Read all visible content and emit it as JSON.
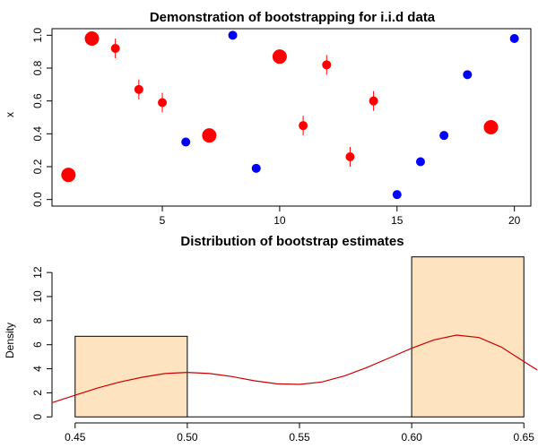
{
  "chart_data": [
    {
      "type": "scatter",
      "title": "Demonstration of bootstrapping for i.i.d data",
      "xlabel": "",
      "ylabel": "x",
      "xlim": [
        0.3,
        20.7
      ],
      "ylim": [
        -0.04,
        1.04
      ],
      "x_ticks": [
        5,
        10,
        15,
        20
      ],
      "y_ticks": [
        0.0,
        0.2,
        0.4,
        0.6,
        0.8,
        1.0
      ],
      "x_tick_labels": [
        "5",
        "10",
        "15",
        "20"
      ],
      "y_tick_labels": [
        "0.0",
        "0.2",
        "0.4",
        "0.6",
        "0.8",
        "1.0"
      ],
      "colors": {
        "sampled": "#ff0000",
        "not_sampled": "#0000ff"
      },
      "points": [
        {
          "x": 1,
          "y": 0.15,
          "color": "red",
          "size": 1.6,
          "spike": 0.0
        },
        {
          "x": 2,
          "y": 0.98,
          "color": "red",
          "size": 1.6,
          "spike": 0.0
        },
        {
          "x": 3,
          "y": 0.92,
          "color": "red",
          "size": 1.0,
          "spike": 0.06
        },
        {
          "x": 4,
          "y": 0.67,
          "color": "red",
          "size": 1.0,
          "spike": 0.06
        },
        {
          "x": 5,
          "y": 0.59,
          "color": "red",
          "size": 1.0,
          "spike": 0.06
        },
        {
          "x": 6,
          "y": 0.35,
          "color": "blue",
          "size": 1.0,
          "spike": 0.0
        },
        {
          "x": 7,
          "y": 0.39,
          "color": "red",
          "size": 1.6,
          "spike": 0.0
        },
        {
          "x": 8,
          "y": 1.0,
          "color": "blue",
          "size": 1.0,
          "spike": 0.0
        },
        {
          "x": 9,
          "y": 0.19,
          "color": "blue",
          "size": 1.0,
          "spike": 0.0
        },
        {
          "x": 10,
          "y": 0.87,
          "color": "red",
          "size": 1.6,
          "spike": 0.0
        },
        {
          "x": 11,
          "y": 0.45,
          "color": "red",
          "size": 1.0,
          "spike": 0.06
        },
        {
          "x": 12,
          "y": 0.82,
          "color": "red",
          "size": 1.0,
          "spike": 0.06
        },
        {
          "x": 13,
          "y": 0.26,
          "color": "red",
          "size": 1.0,
          "spike": 0.06
        },
        {
          "x": 14,
          "y": 0.6,
          "color": "red",
          "size": 1.0,
          "spike": 0.06
        },
        {
          "x": 15,
          "y": 0.03,
          "color": "blue",
          "size": 1.0,
          "spike": 0.0
        },
        {
          "x": 16,
          "y": 0.23,
          "color": "blue",
          "size": 1.0,
          "spike": 0.0
        },
        {
          "x": 17,
          "y": 0.39,
          "color": "blue",
          "size": 1.0,
          "spike": 0.0
        },
        {
          "x": 18,
          "y": 0.76,
          "color": "blue",
          "size": 1.0,
          "spike": 0.0
        },
        {
          "x": 19,
          "y": 0.44,
          "color": "red",
          "size": 1.6,
          "spike": 0.0
        },
        {
          "x": 20,
          "y": 0.98,
          "color": "blue",
          "size": 1.0,
          "spike": 0.0
        }
      ]
    },
    {
      "type": "histogram",
      "title": "Distribution of bootstrap estimates",
      "xlabel": "",
      "ylabel": "Density",
      "xlim": [
        0.4397,
        0.6563
      ],
      "ylim": [
        -0.5,
        13.5
      ],
      "x_ticks": [
        0.45,
        0.5,
        0.55,
        0.6,
        0.65
      ],
      "y_ticks": [
        0,
        2,
        4,
        6,
        8,
        10,
        12
      ],
      "x_tick_labels": [
        "0.45",
        "0.50",
        "0.55",
        "0.60",
        "0.65"
      ],
      "y_tick_labels": [
        "0",
        "2",
        "4",
        "6",
        "8",
        "10",
        "12"
      ],
      "bar_fill": "#fde3c0",
      "density_color": "#cc0000",
      "bins": [
        {
          "x0": 0.45,
          "x1": 0.5,
          "density": 6.7
        },
        {
          "x0": 0.5,
          "x1": 0.55,
          "density": 0
        },
        {
          "x0": 0.55,
          "x1": 0.6,
          "density": 0
        },
        {
          "x0": 0.6,
          "x1": 0.65,
          "density": 13.3
        }
      ],
      "density_curve": [
        [
          0.44,
          1.2
        ],
        [
          0.45,
          1.8
        ],
        [
          0.46,
          2.4
        ],
        [
          0.47,
          2.9
        ],
        [
          0.48,
          3.3
        ],
        [
          0.49,
          3.6
        ],
        [
          0.5,
          3.7
        ],
        [
          0.51,
          3.6
        ],
        [
          0.52,
          3.35
        ],
        [
          0.53,
          3.0
        ],
        [
          0.54,
          2.75
        ],
        [
          0.55,
          2.7
        ],
        [
          0.56,
          2.9
        ],
        [
          0.57,
          3.4
        ],
        [
          0.58,
          4.1
        ],
        [
          0.59,
          4.9
        ],
        [
          0.6,
          5.7
        ],
        [
          0.61,
          6.4
        ],
        [
          0.62,
          6.8
        ],
        [
          0.63,
          6.6
        ],
        [
          0.64,
          5.8
        ],
        [
          0.65,
          4.6
        ],
        [
          0.656,
          3.9
        ]
      ]
    }
  ]
}
